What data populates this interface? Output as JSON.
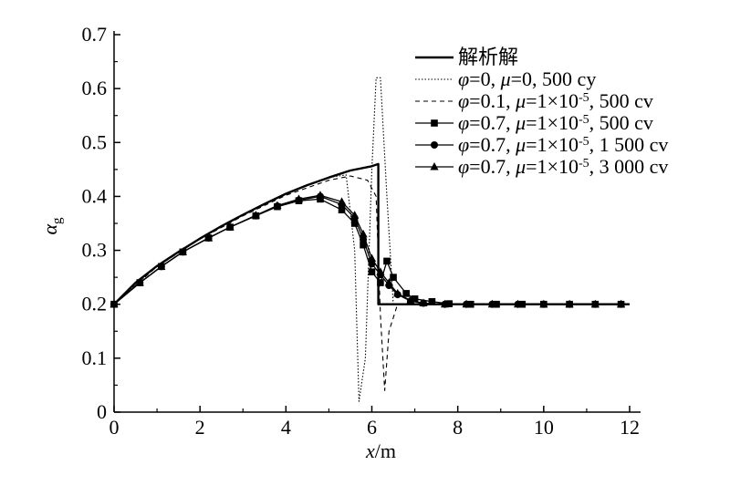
{
  "chart_data": {
    "type": "line",
    "xlabel_var": "x",
    "xlabel_unit": "/m",
    "ylabel_var": "α",
    "ylabel_sub": "g",
    "xlim": [
      0,
      12
    ],
    "ylim": [
      0,
      0.7
    ],
    "xticks": [
      "0",
      "2",
      "4",
      "6",
      "8",
      "10",
      "12"
    ],
    "yticks": [
      "0",
      "0.1",
      "0.2",
      "0.3",
      "0.4",
      "0.5",
      "0.6",
      "0.7"
    ],
    "grid": false,
    "legend_position": "top-right",
    "series": [
      {
        "name": "解析解",
        "legend_parts": [
          [
            "t",
            "解析解"
          ]
        ],
        "style": "solid-thick",
        "marker": "none",
        "x": [
          0,
          0.5,
          1,
          1.5,
          2,
          2.5,
          3,
          3.5,
          4,
          4.5,
          5,
          5.5,
          6,
          6.15,
          6.15,
          6.5,
          7,
          8,
          9,
          10,
          11,
          12
        ],
        "y": [
          0.2,
          0.24,
          0.271,
          0.297,
          0.322,
          0.345,
          0.366,
          0.386,
          0.405,
          0.421,
          0.435,
          0.448,
          0.456,
          0.46,
          0.2,
          0.2,
          0.2,
          0.2,
          0.2,
          0.2,
          0.2,
          0.2
        ]
      },
      {
        "name": "φ=0, μ=0, 500 cy",
        "legend_parts": [
          [
            "i",
            "φ"
          ],
          [
            "t",
            "=0, "
          ],
          [
            "i",
            "μ"
          ],
          [
            "t",
            "=0, 500 cy"
          ]
        ],
        "style": "dotted",
        "marker": "none",
        "x": [
          0,
          1,
          2,
          3,
          4,
          5,
          5.4,
          5.6,
          5.7,
          5.85,
          6.0,
          6.1,
          6.2,
          6.35,
          6.5,
          6.7,
          7,
          8,
          9,
          10,
          11,
          11.8
        ],
        "y": [
          0.2,
          0.271,
          0.322,
          0.366,
          0.405,
          0.435,
          0.44,
          0.3,
          0.02,
          0.1,
          0.45,
          0.62,
          0.62,
          0.4,
          0.2,
          0.2,
          0.2,
          0.2,
          0.2,
          0.2,
          0.2,
          0.2
        ]
      },
      {
        "name": "φ=0.1, μ=1×10-5, 500 cv",
        "legend_parts": [
          [
            "i",
            "φ"
          ],
          [
            "t",
            "=0.1, "
          ],
          [
            "i",
            "μ"
          ],
          [
            "t",
            "=1×10"
          ],
          [
            "s",
            "-5"
          ],
          [
            "t",
            ", 500 cv"
          ]
        ],
        "style": "dashed",
        "marker": "none",
        "x": [
          0,
          1,
          2,
          3,
          4,
          5,
          5.5,
          5.9,
          6.1,
          6.2,
          6.3,
          6.4,
          6.6,
          7,
          8,
          9,
          10,
          11,
          11.8
        ],
        "y": [
          0.2,
          0.27,
          0.321,
          0.364,
          0.402,
          0.43,
          0.438,
          0.43,
          0.4,
          0.18,
          0.04,
          0.15,
          0.2,
          0.2,
          0.2,
          0.2,
          0.2,
          0.2,
          0.2
        ]
      },
      {
        "name": "φ=0.7, μ=1×10-5, 500 cv",
        "legend_parts": [
          [
            "i",
            "φ"
          ],
          [
            "t",
            "=0.7, "
          ],
          [
            "i",
            "μ"
          ],
          [
            "t",
            "=1×10"
          ],
          [
            "s",
            "-5"
          ],
          [
            "t",
            ", 500 cv"
          ]
        ],
        "style": "solid",
        "marker": "square",
        "x": [
          0,
          0.6,
          1.1,
          1.6,
          2.2,
          2.7,
          3.3,
          3.8,
          4.3,
          4.8,
          5.3,
          5.6,
          5.8,
          6.0,
          6.2,
          6.35,
          6.5,
          6.8,
          7.0,
          7.4,
          7.8,
          8.3,
          8.9,
          9.5,
          10.0,
          10.6,
          11.2,
          11.8
        ],
        "y": [
          0.2,
          0.24,
          0.27,
          0.297,
          0.323,
          0.343,
          0.364,
          0.381,
          0.392,
          0.395,
          0.375,
          0.35,
          0.31,
          0.26,
          0.24,
          0.28,
          0.25,
          0.22,
          0.21,
          0.205,
          0.201,
          0.2,
          0.2,
          0.2,
          0.2,
          0.2,
          0.2,
          0.2
        ]
      },
      {
        "name": "φ=0.7, μ=1×10-5, 1 500 cv",
        "legend_parts": [
          [
            "i",
            "φ"
          ],
          [
            "t",
            "=0.7, "
          ],
          [
            "i",
            "μ"
          ],
          [
            "t",
            "=1×10"
          ],
          [
            "s",
            "-5"
          ],
          [
            "t",
            ", 1 500 cv"
          ]
        ],
        "style": "solid",
        "marker": "circle",
        "x": [
          0,
          0.6,
          1.1,
          1.6,
          2.2,
          2.7,
          3.3,
          3.8,
          4.3,
          4.8,
          5.3,
          5.6,
          5.8,
          6.0,
          6.2,
          6.4,
          6.6,
          6.9,
          7.2,
          7.7,
          8.2,
          8.8,
          9.4,
          10.0,
          10.6,
          11.2,
          11.8
        ],
        "y": [
          0.2,
          0.24,
          0.27,
          0.297,
          0.323,
          0.343,
          0.364,
          0.382,
          0.393,
          0.4,
          0.385,
          0.36,
          0.32,
          0.275,
          0.255,
          0.235,
          0.218,
          0.206,
          0.202,
          0.2,
          0.2,
          0.2,
          0.2,
          0.2,
          0.2,
          0.2,
          0.2
        ]
      },
      {
        "name": "φ=0.7, μ=1×10-5, 3 000 cv",
        "legend_parts": [
          [
            "i",
            "φ"
          ],
          [
            "t",
            "=0.7, "
          ],
          [
            "i",
            "μ"
          ],
          [
            "t",
            "=1×10"
          ],
          [
            "s",
            "-5"
          ],
          [
            "t",
            ", 3 000 cv"
          ]
        ],
        "style": "solid",
        "marker": "triangle",
        "x": [
          0,
          0.6,
          1.1,
          1.6,
          2.2,
          2.7,
          3.3,
          3.8,
          4.3,
          4.8,
          5.3,
          5.6,
          5.8,
          6.0,
          6.2,
          6.4,
          6.6,
          6.9,
          7.2,
          7.7,
          8.2,
          8.8,
          9.4,
          10.0,
          10.6,
          11.2,
          11.8
        ],
        "y": [
          0.2,
          0.24,
          0.27,
          0.297,
          0.323,
          0.343,
          0.365,
          0.383,
          0.395,
          0.402,
          0.39,
          0.365,
          0.33,
          0.285,
          0.26,
          0.24,
          0.22,
          0.207,
          0.202,
          0.2,
          0.2,
          0.2,
          0.2,
          0.2,
          0.2,
          0.2,
          0.2
        ]
      }
    ]
  }
}
